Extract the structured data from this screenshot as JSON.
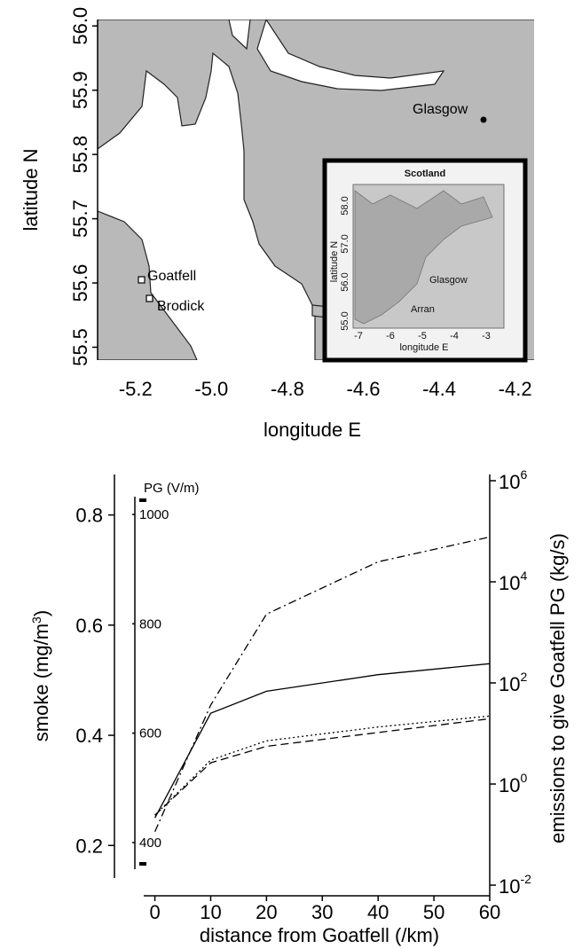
{
  "colors": {
    "land": "#b9b9b9",
    "sea": "#ffffff",
    "line": "#000000"
  },
  "map": {
    "xlabel": "longitude E",
    "ylabel": "latitude N",
    "xlim": [
      -5.3,
      -4.15
    ],
    "ylim": [
      55.48,
      56.01
    ],
    "xticks": [
      "-5.2",
      "-5.0",
      "-4.8",
      "-4.6",
      "-4.4",
      "-4.2"
    ],
    "yticks": [
      "55.5",
      "55.6",
      "55.7",
      "55.8",
      "55.9",
      "56.0"
    ],
    "places": [
      {
        "name": "Goatfell",
        "lon": -5.19,
        "lat": 55.625
      },
      {
        "name": "Brodick",
        "lon": -5.155,
        "lat": 55.575
      },
      {
        "name": "Glasgow",
        "lon": -4.25,
        "lat": 55.86
      }
    ],
    "inset": {
      "title": "Scotland",
      "xlabel": "longitude E",
      "ylabel": "latitude N",
      "xticks": [
        "-7",
        "-6",
        "-5",
        "-4",
        "-3"
      ],
      "yticks": [
        "55.0",
        "56.0",
        "57.0",
        "58.0"
      ],
      "labels": [
        "Glasgow",
        "Arran"
      ]
    }
  },
  "chart_data": {
    "type": "line",
    "xlabel": "distance from Goatfell (/km)",
    "ylabel_left": "smoke (mg/m",
    "ylabel_left_sup": "3",
    "ylabel_left_end": ")",
    "ylabel_right": "emissions to give Goatfell PG (kg/s)",
    "pg_label": "PG (V/m)",
    "x": [
      0,
      10,
      20,
      40,
      60
    ],
    "xticks": [
      "0",
      "10",
      "20",
      "30",
      "40",
      "50",
      "60"
    ],
    "xlim": [
      -2,
      60
    ],
    "left_yticks": [
      "0.2",
      "0.4",
      "0.6",
      "0.8"
    ],
    "left_ylim": [
      0.165,
      0.83
    ],
    "pg_ticks": [
      "400",
      "600",
      "800",
      "1000"
    ],
    "right_yticks": [
      {
        "base": "10",
        "exp": "-2"
      },
      {
        "base": "10",
        "exp": "0"
      },
      {
        "base": "10",
        "exp": "2"
      },
      {
        "base": "10",
        "exp": "4"
      },
      {
        "base": "10",
        "exp": "6"
      }
    ],
    "right_log_range": [
      -2,
      6
    ],
    "series": [
      {
        "style": "dashdot",
        "values": [
          0.225,
          0.455,
          0.62,
          0.715,
          0.76
        ]
      },
      {
        "style": "solid",
        "values": [
          0.25,
          0.44,
          0.48,
          0.51,
          0.53
        ]
      },
      {
        "style": "dotted",
        "values": [
          0.255,
          0.355,
          0.39,
          0.415,
          0.435
        ]
      },
      {
        "style": "dashed",
        "values": [
          0.255,
          0.35,
          0.38,
          0.405,
          0.43
        ]
      }
    ]
  }
}
